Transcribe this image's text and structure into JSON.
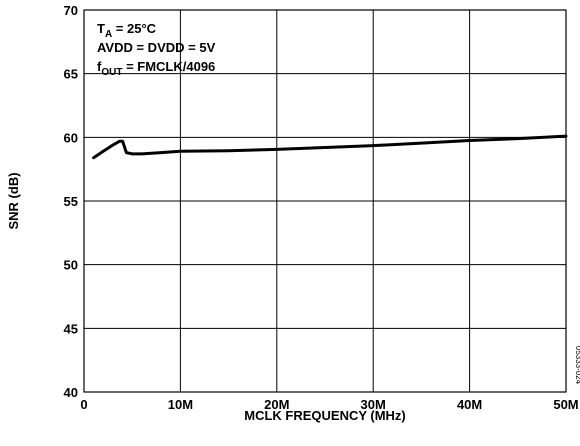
{
  "chart_data": {
    "type": "line",
    "xlabel": "MCLK FREQUENCY (MHz)",
    "ylabel": "SNR (dB)",
    "xlim": [
      0,
      50
    ],
    "ylim": [
      40,
      70
    ],
    "grid": true,
    "x_ticks": [
      0,
      10,
      20,
      30,
      40,
      50
    ],
    "x_tick_labels": [
      "0",
      "10M",
      "20M",
      "30M",
      "40M",
      "50M"
    ],
    "y_ticks": [
      40,
      45,
      50,
      55,
      60,
      65,
      70
    ],
    "y_tick_labels": [
      "40",
      "45",
      "50",
      "55",
      "60",
      "65",
      "70"
    ],
    "annotation": {
      "line1_main": "T",
      "line1_sub": "A",
      "line1_rest": " = 25°C",
      "line2": "AVDD = DVDD = 5V",
      "line3_main": "f",
      "line3_sub": "OUT",
      "line3_rest": " = FMCLK/4096"
    },
    "figure_id": "05333-024",
    "series": [
      {
        "x": [
          1,
          2,
          3,
          3.7,
          4,
          4.4,
          5,
          6,
          8,
          10,
          15,
          20,
          25,
          30,
          35,
          40,
          45,
          50
        ],
        "y": [
          58.4,
          58.9,
          59.4,
          59.7,
          59.7,
          58.8,
          58.7,
          58.7,
          58.8,
          58.9,
          58.95,
          59.05,
          59.2,
          59.35,
          59.55,
          59.75,
          59.9,
          60.1
        ]
      }
    ]
  }
}
